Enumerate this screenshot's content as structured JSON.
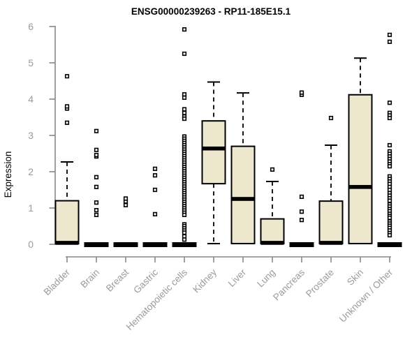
{
  "chart_data": {
    "type": "boxplot",
    "title": "ENSG00000239263 - RP11-185E15.1",
    "xlabel": "",
    "ylabel": "Expression",
    "ylim": [
      0,
      6
    ],
    "yticks": [
      0,
      1,
      2,
      3,
      4,
      5,
      6
    ],
    "grid": false,
    "legend": "none",
    "categories": [
      "Bladder",
      "Brain",
      "Breast",
      "Gastric",
      "Hematopoietic cells",
      "Kidney",
      "Liver",
      "Lung",
      "Pancreas",
      "Prostate",
      "Skin",
      "Unknown / Other"
    ],
    "boxes": [
      {
        "category": "Bladder",
        "low": 0.02,
        "q1": 0.02,
        "median": 0.04,
        "q3": 1.2,
        "high": 2.27,
        "outliers": [
          3.35,
          3.74,
          3.8,
          4.63
        ]
      },
      {
        "category": "Brain",
        "low": 0,
        "q1": 0,
        "median": 0.02,
        "q3": 0.04,
        "high": 0.04,
        "outliers": [
          0.81,
          0.94,
          1.15,
          1.58,
          1.85,
          2.42,
          2.46,
          2.6,
          3.12
        ]
      },
      {
        "category": "Breast",
        "low": 0,
        "q1": 0,
        "median": 0.02,
        "q3": 0.04,
        "high": 0.04,
        "outliers": [
          1.08,
          1.18,
          1.26
        ]
      },
      {
        "category": "Gastric",
        "low": 0,
        "q1": 0,
        "median": 0.02,
        "q3": 0.04,
        "high": 0.04,
        "outliers": [
          0.83,
          1.5,
          1.9,
          2.08
        ]
      },
      {
        "category": "Hematopoietic cells",
        "low": 0,
        "q1": 0,
        "median": 0.02,
        "q3": 0.04,
        "high": 0.04,
        "outliers": [
          5.92,
          5.25,
          4.13,
          4.04,
          3.72,
          3.62,
          3.52,
          3.46,
          2.97,
          2.91,
          2.85,
          2.79,
          2.73,
          2.67,
          2.61,
          2.55,
          2.49,
          2.43,
          2.37,
          2.31,
          2.25,
          2.19,
          2.13,
          2.07,
          2.01,
          1.95,
          1.89,
          1.83,
          1.77,
          1.71,
          1.65,
          1.59,
          1.53,
          1.47,
          1.41,
          1.35,
          1.29,
          1.23,
          1.17,
          1.11,
          1.05,
          0.99,
          0.93,
          0.87,
          0.81,
          0.55,
          0.5,
          0.44,
          0.38,
          0.32,
          0.22,
          0.13
        ]
      },
      {
        "category": "Kidney",
        "low": 0.02,
        "q1": 1.67,
        "median": 2.64,
        "q3": 3.4,
        "high": 4.47,
        "outliers": []
      },
      {
        "category": "Liver",
        "low": 0.02,
        "q1": 0.02,
        "median": 1.25,
        "q3": 2.7,
        "high": 4.17,
        "outliers": []
      },
      {
        "category": "Lung",
        "low": 0.02,
        "q1": 0.02,
        "median": 0.04,
        "q3": 0.7,
        "high": 1.73,
        "outliers": [
          2.06
        ]
      },
      {
        "category": "Pancreas",
        "low": 0,
        "q1": 0,
        "median": 0.02,
        "q3": 0.04,
        "high": 0.04,
        "outliers": [
          0.67,
          0.9,
          1.31,
          4.12,
          4.18
        ]
      },
      {
        "category": "Prostate",
        "low": 0.02,
        "q1": 0.02,
        "median": 0.04,
        "q3": 1.19,
        "high": 2.73,
        "outliers": [
          3.48
        ]
      },
      {
        "category": "Skin",
        "low": 0.02,
        "q1": 0.02,
        "median": 1.58,
        "q3": 4.12,
        "high": 5.13,
        "outliers": []
      },
      {
        "category": "Unknown / Other",
        "low": 0,
        "q1": 0,
        "median": 0.02,
        "q3": 0.04,
        "high": 0.04,
        "outliers": [
          5.77,
          5.58,
          3.9,
          3.62,
          3.55,
          3.48,
          2.73,
          2.56,
          2.49,
          2.42,
          2.35,
          2.28,
          2.21,
          2.15,
          1.87,
          1.8,
          1.73,
          1.66,
          1.58,
          1.5,
          1.41,
          1.34,
          1.27,
          1.2,
          1.1,
          1.04,
          0.97,
          0.91,
          0.84,
          0.78,
          0.73,
          0.63,
          0.57,
          0.51,
          0.45,
          0.38,
          0.31,
          0.25
        ]
      }
    ],
    "colors": {
      "box_fill": "#EDE8CD",
      "box_border": "#000000",
      "median": "#000000",
      "whisker": "#000000",
      "outlier": "#000000",
      "axis_line": "#878787",
      "axis_text": "#9b9b9b",
      "title_color": "#000000",
      "background": "#ffffff"
    }
  }
}
